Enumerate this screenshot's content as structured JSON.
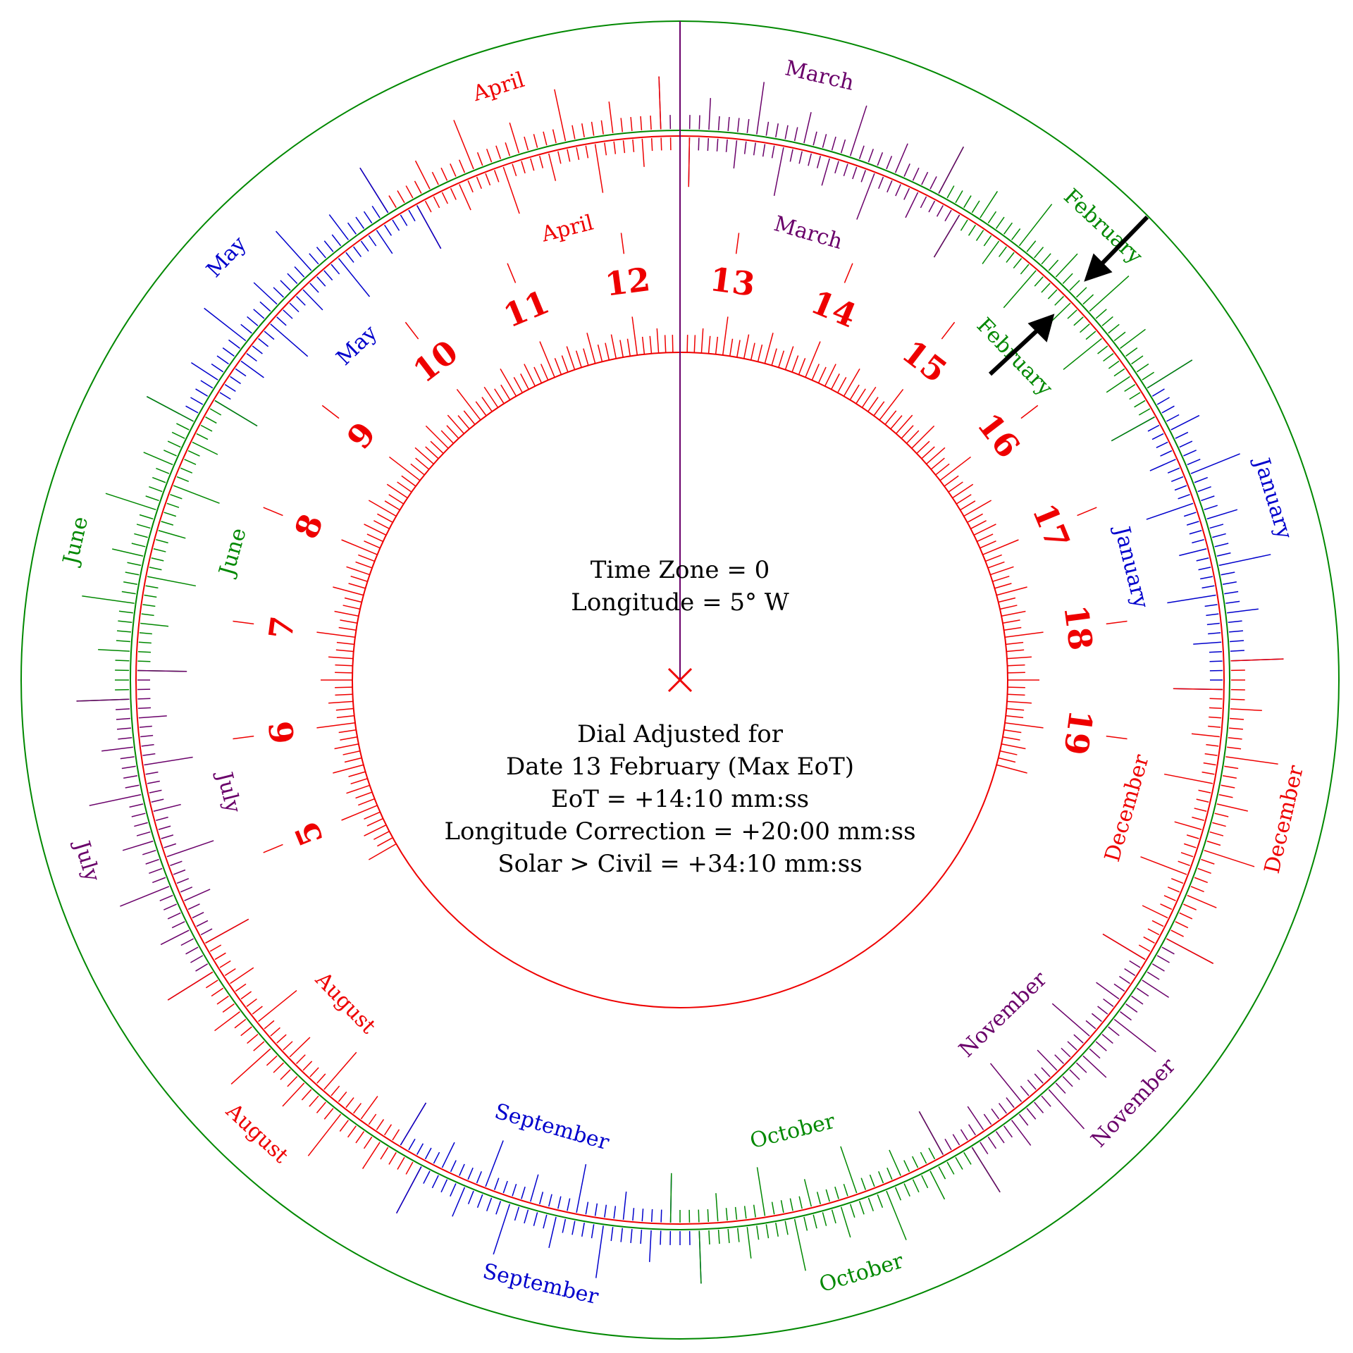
{
  "hour_numerals": [
    "5",
    "6",
    "7",
    "8",
    "9",
    "10",
    "11",
    "12",
    "13",
    "14",
    "15",
    "16",
    "17",
    "18",
    "19"
  ],
  "months": [
    {
      "name": "January",
      "color": "#0000cc"
    },
    {
      "name": "February",
      "color": "#008800"
    },
    {
      "name": "March",
      "color": "#6a006a"
    },
    {
      "name": "April",
      "color": "#ee0000"
    },
    {
      "name": "May",
      "color": "#0000cc"
    },
    {
      "name": "June",
      "color": "#008800"
    },
    {
      "name": "July",
      "color": "#6a006a"
    },
    {
      "name": "August",
      "color": "#ee0000"
    },
    {
      "name": "September",
      "color": "#0000cc"
    },
    {
      "name": "October",
      "color": "#008800"
    },
    {
      "name": "November",
      "color": "#6a006a"
    },
    {
      "name": "December",
      "color": "#ee0000"
    }
  ],
  "info_top": {
    "line1": "Time Zone = 0",
    "line2": "Longitude = 5° W"
  },
  "info_bottom": {
    "line1": "Dial Adjusted for",
    "line2": "Date 13 February (Max EoT)",
    "line3": "EoT = +14:10 mm:ss",
    "line4": "Longitude Correction = +20:00 mm:ss",
    "line5": "Solar > Civil = +34:10 mm:ss"
  },
  "colors": {
    "hour_scale": "#ee0000",
    "outer_ring": "#008800",
    "noon_line": "#6a006a",
    "center_mark": "#ee0000",
    "arrows": "#000000"
  }
}
